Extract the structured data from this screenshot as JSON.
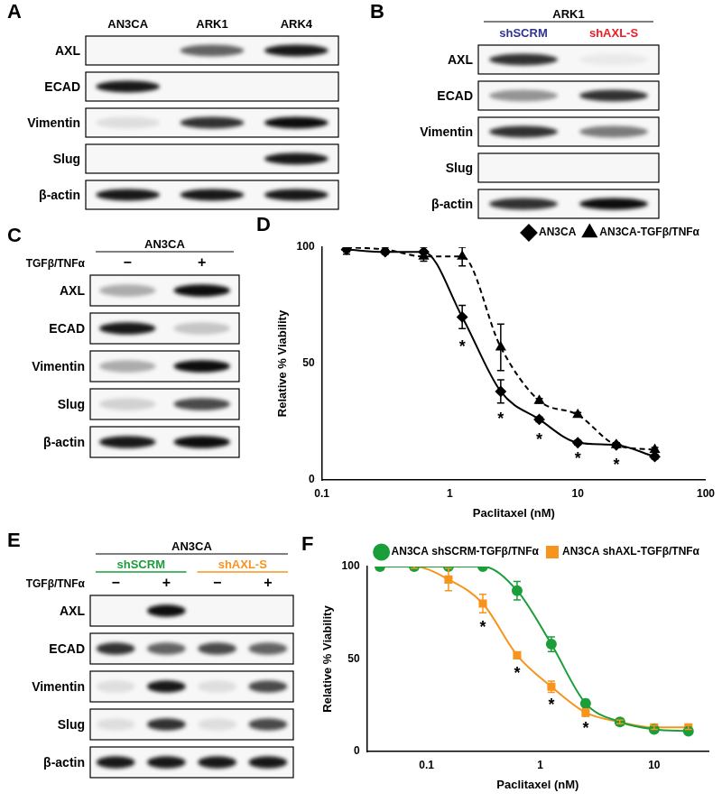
{
  "blots": [
    {
      "panel": "A",
      "lanes": [
        "AN3CA",
        "ARK1",
        "ARK4"
      ],
      "rows": [
        {
          "name": "AXL",
          "bands": [
            0,
            0.6,
            0.9
          ]
        },
        {
          "name": "ECAD",
          "bands": [
            0.9,
            0,
            0
          ]
        },
        {
          "name": "Vimentin",
          "bands": [
            0.1,
            0.8,
            0.95
          ]
        },
        {
          "name": "Slug",
          "bands": [
            0,
            0,
            0.9
          ]
        },
        {
          "name": "β-actin",
          "bands": [
            0.9,
            0.9,
            0.9
          ]
        }
      ]
    },
    {
      "panel": "B",
      "header": "ARK1",
      "lanes": [
        "shSCRM",
        "shAXL-S"
      ],
      "lane_colors": [
        "#2e3192",
        "#ed1c24"
      ],
      "rows": [
        {
          "name": "AXL",
          "bands": [
            0.8,
            0.05
          ]
        },
        {
          "name": "ECAD",
          "bands": [
            0.4,
            0.8
          ]
        },
        {
          "name": "Vimentin",
          "bands": [
            0.8,
            0.5
          ]
        },
        {
          "name": "Slug",
          "bands": [
            0,
            0
          ]
        },
        {
          "name": "β-actin",
          "bands": [
            0.8,
            0.95
          ]
        }
      ]
    },
    {
      "panel": "C",
      "header": "AN3CA",
      "treatment": "TGFβ/TNFα",
      "lanes": [
        "−",
        "+"
      ],
      "rows": [
        {
          "name": "AXL",
          "bands": [
            0.3,
            0.95
          ]
        },
        {
          "name": "ECAD",
          "bands": [
            0.9,
            0.2
          ]
        },
        {
          "name": "Vimentin",
          "bands": [
            0.3,
            0.95
          ]
        },
        {
          "name": "Slug",
          "bands": [
            0.15,
            0.7
          ]
        },
        {
          "name": "β-actin",
          "bands": [
            0.9,
            0.95
          ]
        }
      ]
    },
    {
      "panel": "E",
      "header": "AN3CA",
      "treatment": "TGFβ/TNFα",
      "groups": [
        {
          "name": "shSCRM",
          "color": "#1a9e3a",
          "lanes": [
            "−",
            "+"
          ]
        },
        {
          "name": "shAXL-S",
          "color": "#f7941d",
          "lanes": [
            "−",
            "+"
          ]
        }
      ],
      "rows": [
        {
          "name": "AXL",
          "bands": [
            0,
            0.95,
            0,
            0
          ]
        },
        {
          "name": "ECAD",
          "bands": [
            0.8,
            0.6,
            0.7,
            0.6
          ]
        },
        {
          "name": "Vimentin",
          "bands": [
            0.1,
            0.9,
            0.1,
            0.7
          ]
        },
        {
          "name": "Slug",
          "bands": [
            0.1,
            0.8,
            0.1,
            0.7
          ]
        },
        {
          "name": "β-actin",
          "bands": [
            0.9,
            0.9,
            0.9,
            0.9
          ]
        }
      ]
    }
  ],
  "chart_data": [
    {
      "panel": "D",
      "type": "line",
      "x_label": "Paclitaxel (nM)",
      "y_label": "Relative % Viability",
      "log": "x",
      "grid": false,
      "legend": "upper right",
      "xlim": [
        0.1,
        100
      ],
      "xticks": [
        0.1,
        1,
        10,
        100
      ],
      "ylim": [
        0,
        100
      ],
      "yticks": [
        0,
        50,
        100
      ],
      "x": [
        0.156,
        0.3125,
        0.625,
        1.25,
        2.5,
        5,
        10,
        20,
        40
      ],
      "series": [
        {
          "name": "AN3CA",
          "color": "#000000",
          "marker": "diamond",
          "line_style": "solid",
          "values": [
            99,
            98,
            98,
            70,
            38,
            26,
            16,
            15,
            10
          ],
          "errors": [
            2,
            1,
            2,
            5,
            5,
            1,
            1,
            1,
            1
          ]
        },
        {
          "name": "AN3CA-TGFβ/TNFα",
          "color": "#000000",
          "marker": "triangle",
          "line_style": "dashed",
          "values": [
            100,
            99,
            96,
            96,
            57,
            34,
            28,
            15,
            13
          ],
          "errors": [
            2,
            1,
            2,
            4,
            10,
            1,
            1,
            1,
            1
          ]
        }
      ],
      "annotations": [
        {
          "x": 1.25,
          "y": 57,
          "text": "*"
        },
        {
          "x": 2.5,
          "y": 26,
          "text": "*"
        },
        {
          "x": 5,
          "y": 17,
          "text": "*"
        },
        {
          "x": 10,
          "y": 9,
          "text": "*"
        },
        {
          "x": 20,
          "y": 6,
          "text": "*"
        }
      ]
    },
    {
      "panel": "F",
      "type": "line",
      "x_label": "Paclitaxel (nM)",
      "y_label": "Relative % Viability",
      "log": "x",
      "grid": false,
      "legend": "upper right",
      "xlim": [
        0.03,
        30
      ],
      "xticks": [
        0.1,
        1,
        10
      ],
      "ylim": [
        0,
        100
      ],
      "yticks": [
        0,
        50,
        100
      ],
      "x": [
        0.039,
        0.078,
        0.156,
        0.3125,
        0.625,
        1.25,
        2.5,
        5,
        10,
        20
      ],
      "series": [
        {
          "name": "AN3CA shSCRM-TGFβ/TNFα",
          "color": "#1a9e3a",
          "marker": "circle",
          "line_style": "solid",
          "values": [
            100,
            100,
            100,
            100,
            87,
            58,
            26,
            16,
            12,
            11
          ],
          "errors": [
            0,
            0,
            0,
            1,
            5,
            4,
            2,
            1,
            1,
            1
          ]
        },
        {
          "name": "AN3CA shAXL-TGFβ/TNFα",
          "color": "#f7941d",
          "marker": "square",
          "line_style": "solid",
          "values": [
            100,
            100,
            93,
            80,
            52,
            35,
            21,
            16,
            13,
            13
          ],
          "errors": [
            0,
            1,
            6,
            5,
            1,
            3,
            2,
            1,
            1,
            1
          ]
        }
      ],
      "annotations": [
        {
          "x": 0.3125,
          "y": 67,
          "text": "*"
        },
        {
          "x": 0.625,
          "y": 42,
          "text": "*"
        },
        {
          "x": 1.25,
          "y": 25,
          "text": "*"
        },
        {
          "x": 2.5,
          "y": 12,
          "text": "*"
        }
      ]
    }
  ]
}
